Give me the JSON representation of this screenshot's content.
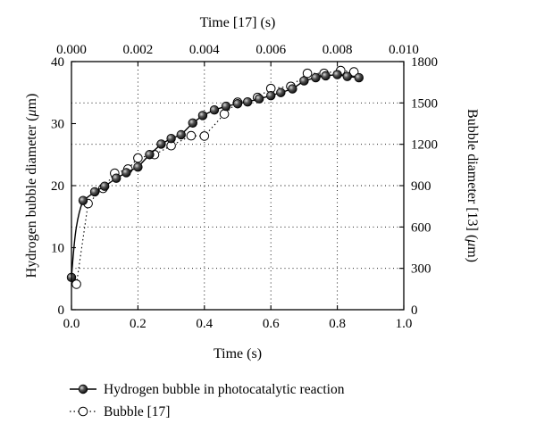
{
  "chart_data": {
    "type": "scatter",
    "title": "",
    "x_bottom": {
      "label": "Time (s)",
      "range": [
        0.0,
        1.0
      ],
      "ticks": [
        0.0,
        0.2,
        0.4,
        0.6,
        0.8,
        1.0
      ],
      "tick_labels": [
        "0.0",
        "0.2",
        "0.4",
        "0.6",
        "0.8",
        "1.0"
      ]
    },
    "x_top": {
      "label": "Time [17] (s)",
      "range": [
        0.0,
        0.01
      ],
      "ticks": [
        0.0,
        0.002,
        0.004,
        0.006,
        0.008,
        0.01
      ],
      "tick_labels": [
        "0.000",
        "0.002",
        "0.004",
        "0.006",
        "0.008",
        "0.010"
      ]
    },
    "y_left": {
      "label_main": "Hydrogen bubble diameter (",
      "label_unit": "μ",
      "label_end": "m)",
      "range": [
        0,
        40
      ],
      "ticks": [
        0,
        10,
        20,
        30,
        40
      ],
      "tick_labels": [
        "0",
        "10",
        "20",
        "30",
        "40"
      ]
    },
    "y_right": {
      "label_main": "Bubble diameter [13] (",
      "label_unit": "μ",
      "label_end": "m)",
      "range": [
        0,
        1800
      ],
      "ticks": [
        0,
        300,
        600,
        900,
        1200,
        1500,
        1800
      ],
      "tick_labels": [
        "0",
        "300",
        "600",
        "900",
        "1200",
        "1500",
        "1800"
      ]
    },
    "grid": "dotted, at right-axis ticks",
    "legend_placement": "below plot",
    "series": [
      {
        "name": "Hydrogen bubble in photocatalytic reaction",
        "axis": "bottom-left",
        "style": "solid line, filled circles",
        "x": [
          0.0,
          0.035,
          0.07,
          0.1,
          0.135,
          0.165,
          0.2,
          0.235,
          0.27,
          0.3,
          0.33,
          0.365,
          0.395,
          0.43,
          0.465,
          0.5,
          0.53,
          0.565,
          0.6,
          0.63,
          0.665,
          0.7,
          0.735,
          0.765,
          0.8,
          0.83,
          0.865
        ],
        "y": [
          5.2,
          17.6,
          19.0,
          19.9,
          21.2,
          22.1,
          23.0,
          25.0,
          26.7,
          27.6,
          28.2,
          30.1,
          31.3,
          32.2,
          32.8,
          33.2,
          33.5,
          34.0,
          34.5,
          35.0,
          35.6,
          36.9,
          37.4,
          37.7,
          37.9,
          37.6,
          37.4
        ]
      },
      {
        "name": "Bubble [17]",
        "axis": "top-right",
        "style": "dotted line, open circles",
        "x": [
          0.00015,
          0.0005,
          0.00095,
          0.0013,
          0.0017,
          0.002,
          0.0025,
          0.003,
          0.0036,
          0.004,
          0.0046,
          0.005,
          0.0056,
          0.006,
          0.0066,
          0.0071,
          0.0076,
          0.0081,
          0.0085
        ],
        "y": [
          185,
          770,
          880,
          990,
          1020,
          1100,
          1125,
          1190,
          1262,
          1260,
          1420,
          1505,
          1540,
          1605,
          1620,
          1715,
          1715,
          1735,
          1725
        ]
      }
    ]
  }
}
